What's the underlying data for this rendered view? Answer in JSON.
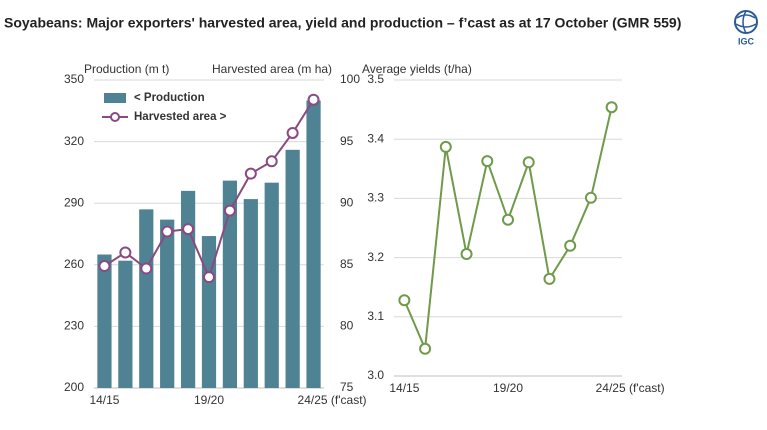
{
  "title": "Soyabeans: Major exporters' harvested area, yield and production – f’cast as at 17 October (GMR 559)",
  "logo_text": "IGC",
  "chart_data": [
    {
      "type": "bar_line",
      "ylabel": "Production (m t)",
      "y2label": "Harvested area (m ha)",
      "categories": [
        "14/15",
        null,
        null,
        null,
        null,
        "19/20",
        null,
        null,
        null,
        null,
        "24/25 (f'cast)"
      ],
      "series": [
        {
          "name": "< Production",
          "color": "#4f8394",
          "type": "bar",
          "values": [
            265,
            262,
            287,
            282,
            296,
            274,
            301,
            292,
            300,
            316,
            340
          ]
        },
        {
          "name": "Harvested area >",
          "color": "#8a4a80",
          "type": "line",
          "axis": "y2",
          "values": [
            84.9,
            86.0,
            84.7,
            87.7,
            87.9,
            84.0,
            89.4,
            92.4,
            93.4,
            95.7,
            98.4
          ]
        }
      ],
      "ylim": [
        200,
        350
      ],
      "yticks": [
        200,
        230,
        260,
        290,
        320,
        350
      ],
      "y2lim": [
        75,
        100
      ],
      "y2ticks": [
        75,
        80,
        85,
        90,
        95,
        100
      ],
      "grid": true,
      "legend": "upper left"
    },
    {
      "type": "line",
      "ylabel": "Average yields (t/ha)",
      "categories": [
        "14/15",
        null,
        null,
        null,
        null,
        "19/20",
        null,
        null,
        null,
        null,
        "24/25 (f'cast)"
      ],
      "series": [
        {
          "color": "#6f9a4a",
          "values": [
            3.128,
            3.046,
            3.387,
            3.206,
            3.363,
            3.264,
            3.361,
            3.164,
            3.22,
            3.301,
            3.454
          ]
        }
      ],
      "ylim": [
        3.0,
        3.5
      ],
      "yticks": [
        {
          "value": 3.0,
          "label": "3.0"
        },
        3.1,
        3.2,
        3.3,
        3.4,
        3.5
      ],
      "grid": true
    }
  ]
}
